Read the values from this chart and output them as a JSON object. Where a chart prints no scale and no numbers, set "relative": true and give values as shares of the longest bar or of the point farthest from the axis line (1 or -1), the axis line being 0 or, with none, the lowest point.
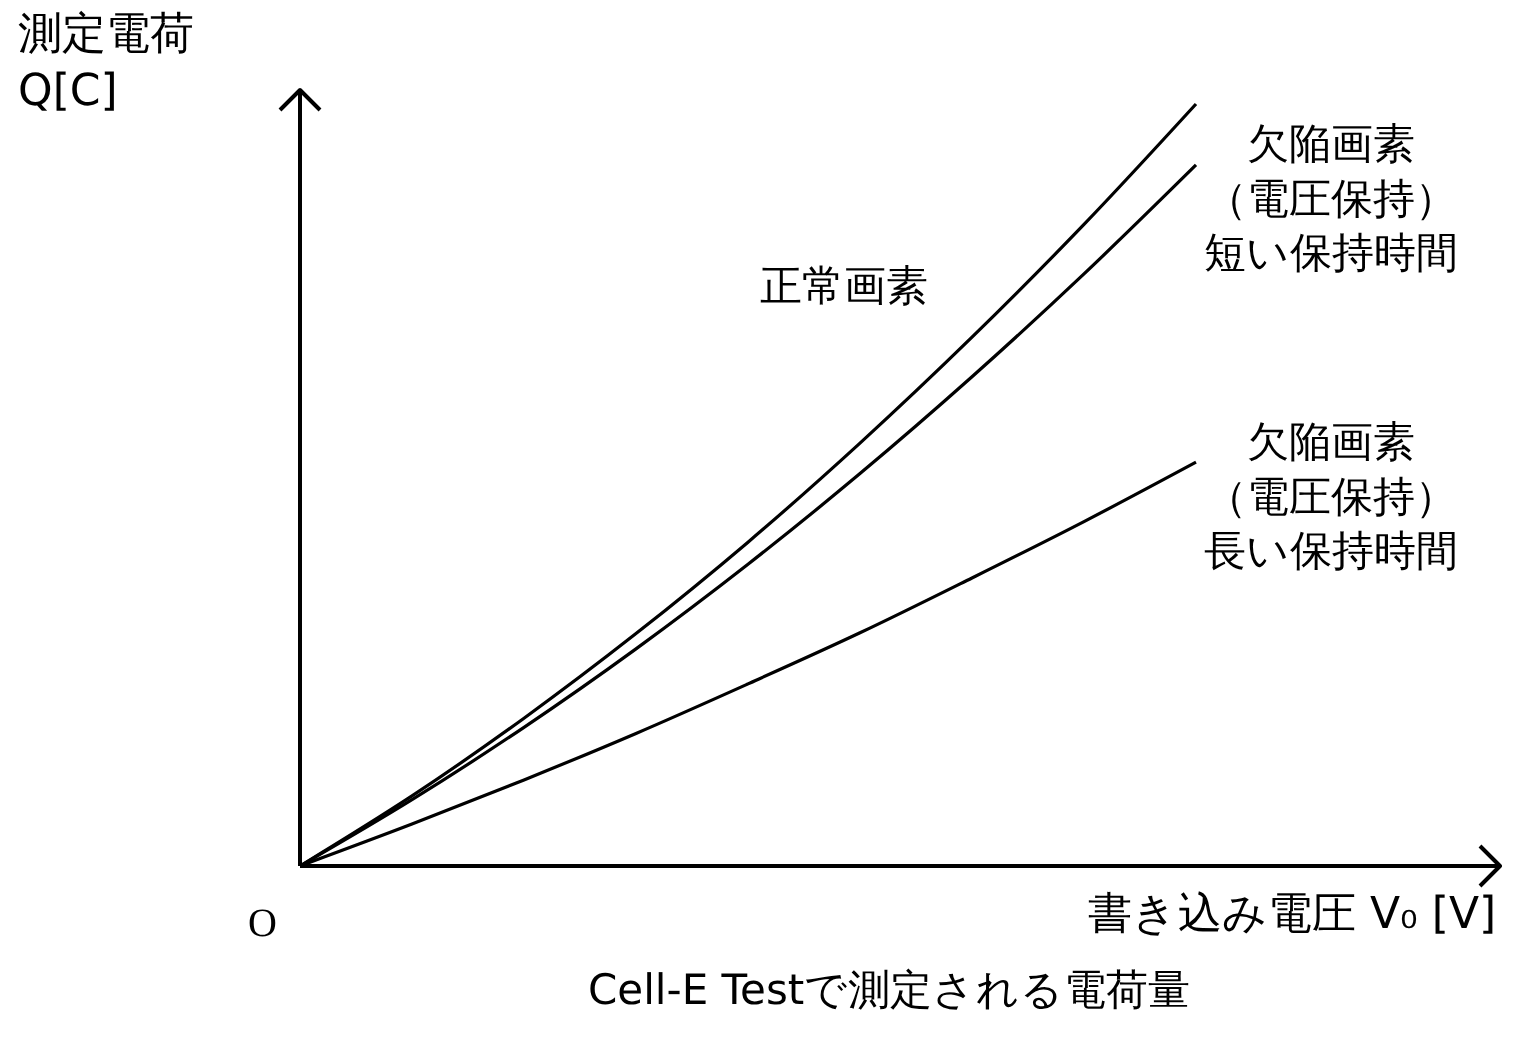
{
  "chart_data": {
    "type": "line",
    "relative": true,
    "xlabel": "書き込み電圧 V₀ [V]",
    "ylabel": "測定電荷\nQ[C]",
    "categories": [
      null,
      null,
      null,
      null,
      null,
      null,
      null,
      null,
      null
    ],
    "series": [
      {
        "name": "正常画素",
        "color": "#000000",
        "values": [
          0,
          0.092,
          0.194,
          0.305,
          0.425,
          0.555,
          0.694,
          0.842,
          1.0
        ]
      },
      {
        "name": "欠陥画素（電圧保持）短い保持時間",
        "color": "#000000",
        "values": [
          0,
          0.087,
          0.182,
          0.285,
          0.396,
          0.515,
          0.642,
          0.777,
          0.92
        ]
      },
      {
        "name": "欠陥画素（電圧保持）長い保持時間",
        "color": "#000000",
        "values": [
          0,
          0.055,
          0.113,
          0.174,
          0.239,
          0.306,
          0.378,
          0.452,
          0.53
        ]
      }
    ],
    "annotations": [
      "O",
      "Cell-E Testで測定される電荷量"
    ],
    "legend": false,
    "marker": "none",
    "line_style": "solid",
    "grid": false
  }
}
